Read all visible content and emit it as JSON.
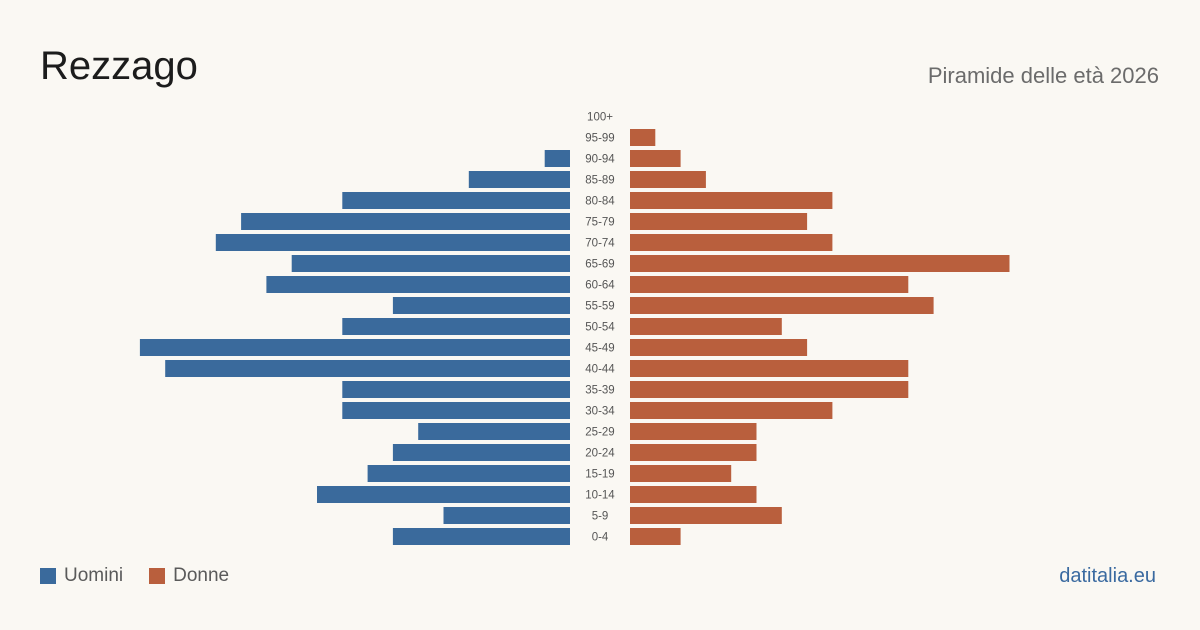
{
  "header": {
    "title": "Rezzago",
    "subtitle": "Piramide delle età 2026"
  },
  "chart_data": {
    "type": "bar",
    "orientation": "horizontal-pyramid",
    "title": "Rezzago",
    "subtitle": "Piramide delle età 2026",
    "categories": [
      "100+",
      "95-99",
      "90-94",
      "85-89",
      "80-84",
      "75-79",
      "70-74",
      "65-69",
      "60-64",
      "55-59",
      "50-54",
      "45-49",
      "40-44",
      "35-39",
      "30-34",
      "25-29",
      "20-24",
      "15-19",
      "10-14",
      "5-9",
      "0-4"
    ],
    "series": [
      {
        "name": "Uomini",
        "color": "#3a6a9c",
        "values": [
          0,
          0,
          1,
          4,
          9,
          13,
          14,
          11,
          12,
          7,
          9,
          17,
          16,
          9,
          9,
          6,
          7,
          8,
          10,
          5,
          7
        ]
      },
      {
        "name": "Donne",
        "color": "#b95f3d",
        "values": [
          0,
          1,
          2,
          3,
          8,
          7,
          8,
          15,
          11,
          12,
          6,
          7,
          11,
          11,
          8,
          5,
          5,
          4,
          5,
          6,
          2
        ]
      }
    ],
    "legend": "bottom-left",
    "grid": false
  },
  "legend": {
    "men_label": "Uomini",
    "women_label": "Donne"
  },
  "footer": {
    "site": "datitalia.eu"
  },
  "colors": {
    "men": "#3a6a9c",
    "women": "#b95f3d",
    "background": "#faf8f3",
    "link": "#3a6aa0"
  }
}
